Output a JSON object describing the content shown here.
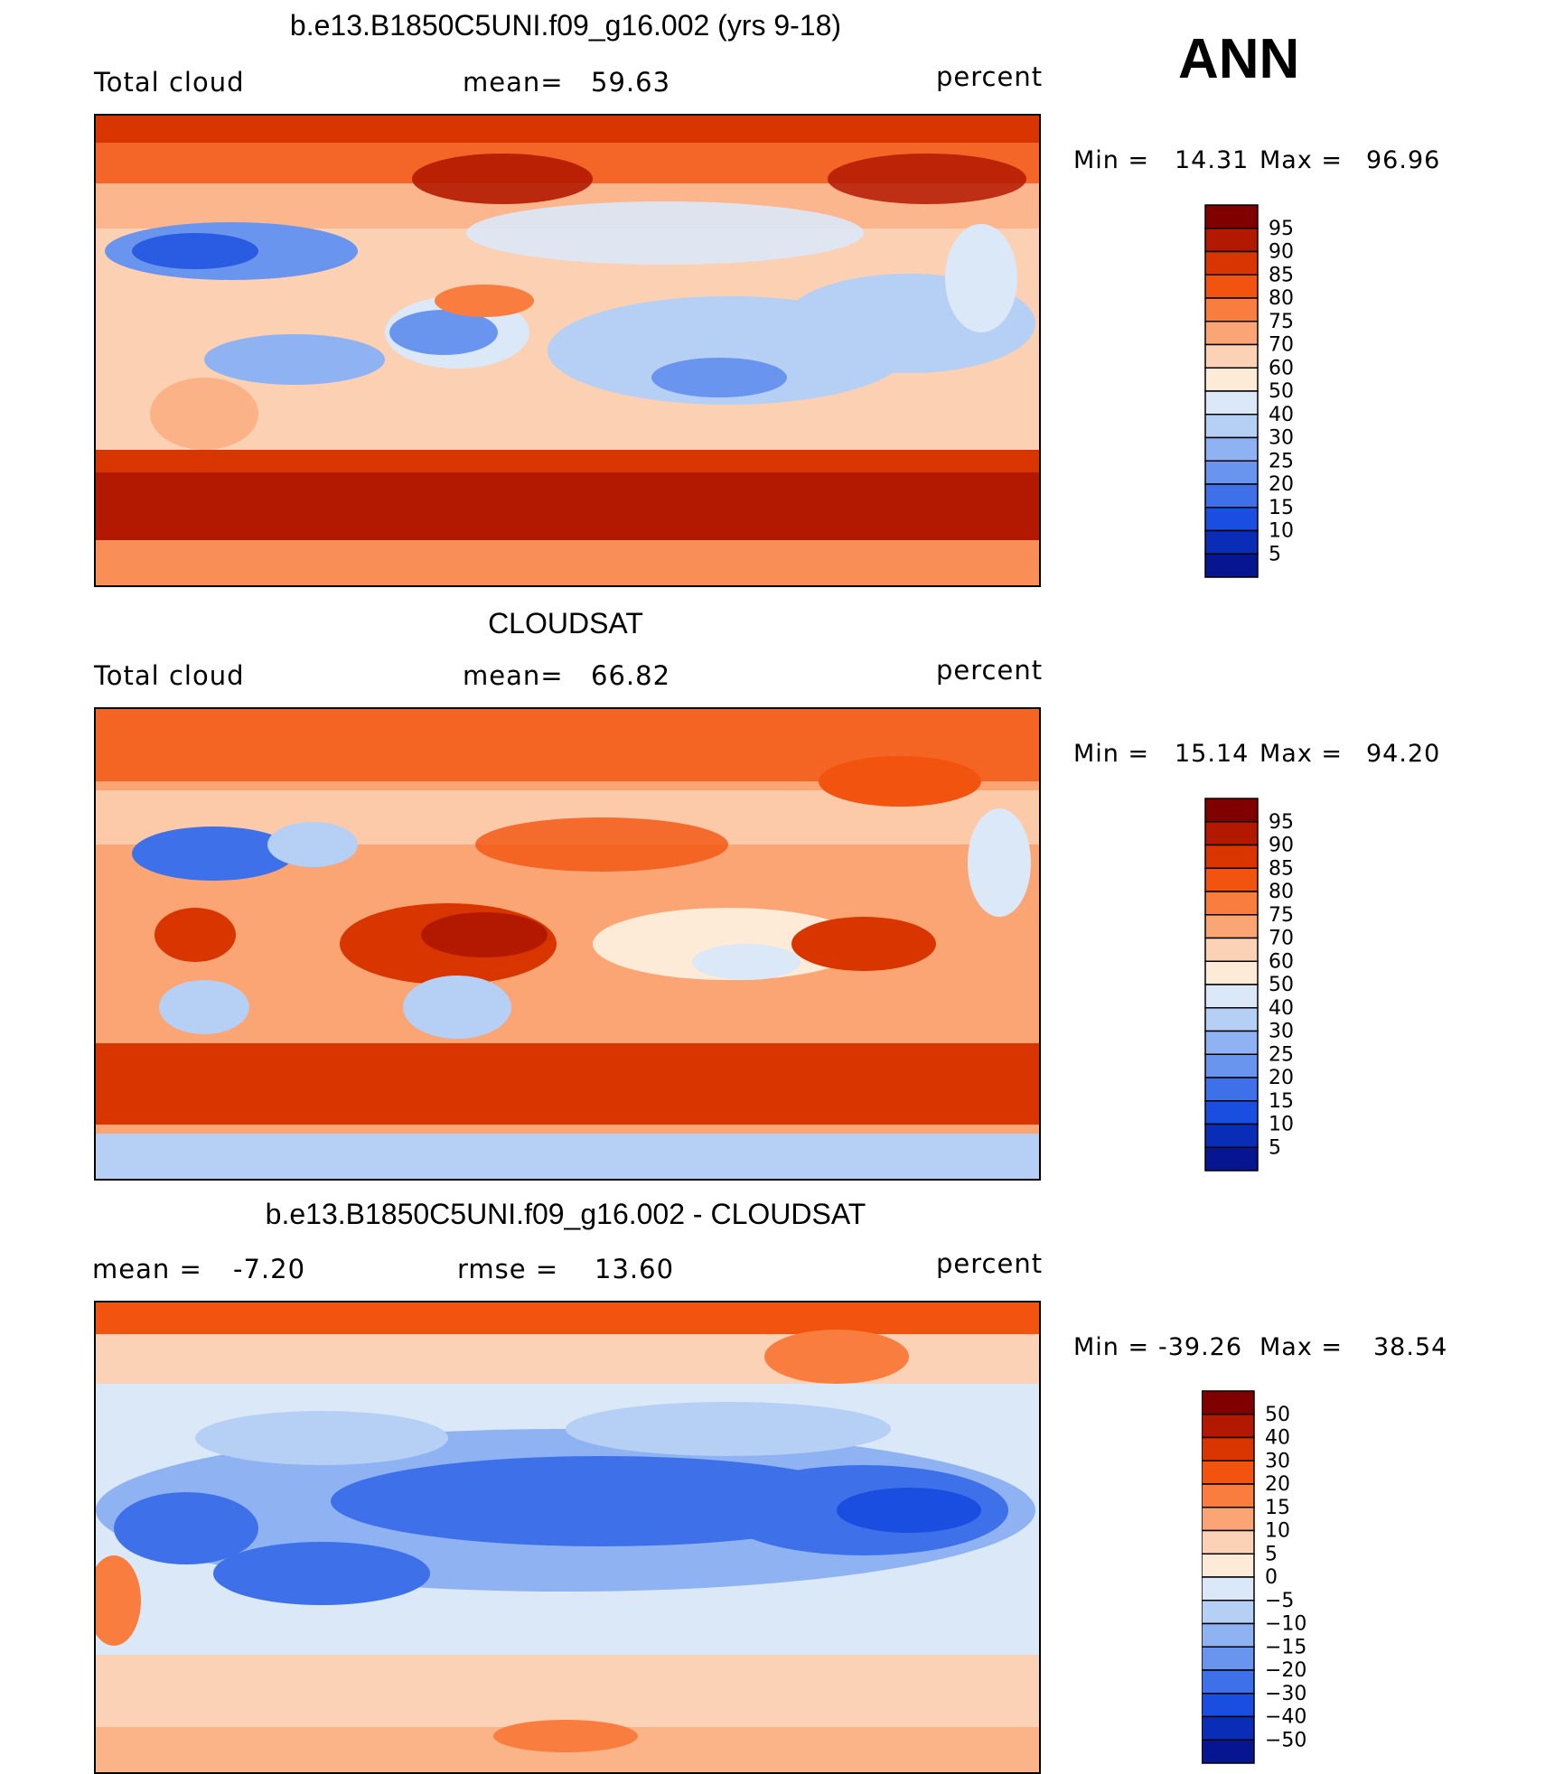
{
  "season": "ANN",
  "panels": [
    {
      "title": "b.e13.B1850C5UNI.f09_g16.002 (yrs 9-18)",
      "left_label": "Total cloud",
      "center_label": "mean=",
      "center_value": "59.63",
      "units": "percent",
      "min_label": "Min =",
      "min": "14.31",
      "max_label": "Max =",
      "max": "96.96",
      "colorbar_levels": [
        "95",
        "90",
        "85",
        "80",
        "75",
        "70",
        "60",
        "50",
        "40",
        "30",
        "25",
        "20",
        "15",
        "10",
        "5"
      ]
    },
    {
      "title": "CLOUDSAT",
      "left_label": "Total cloud",
      "center_label": "mean=",
      "center_value": "66.82",
      "units": "percent",
      "min_label": "Min =",
      "min": "15.14",
      "max_label": "Max =",
      "max": "94.20",
      "colorbar_levels": [
        "95",
        "90",
        "85",
        "80",
        "75",
        "70",
        "60",
        "50",
        "40",
        "30",
        "25",
        "20",
        "15",
        "10",
        "5"
      ]
    },
    {
      "title": "b.e13.B1850C5UNI.f09_g16.002 - CLOUDSAT",
      "left_label": "mean =",
      "left_value": "-7.20",
      "center_label": "rmse =",
      "center_value": "13.60",
      "units": "percent",
      "min_label": "Min =",
      "min": "-39.26",
      "max_label": "Max =",
      "max": "38.54",
      "colorbar_levels": [
        "50",
        "40",
        "30",
        "20",
        "15",
        "10",
        "5",
        "0",
        "-5",
        "-10",
        "-15",
        "-20",
        "-30",
        "-40",
        "-50"
      ]
    }
  ],
  "colors": {
    "scale_16": [
      "#800000",
      "#b31800",
      "#d93500",
      "#f2540f",
      "#f97d3f",
      "#fba575",
      "#fcd2b6",
      "#fdebd8",
      "#dbe8f7",
      "#b5cff5",
      "#8fb2f2",
      "#6a95ef",
      "#3e70ea",
      "#1a4ee0",
      "#0a2db8",
      "#061690"
    ]
  }
}
